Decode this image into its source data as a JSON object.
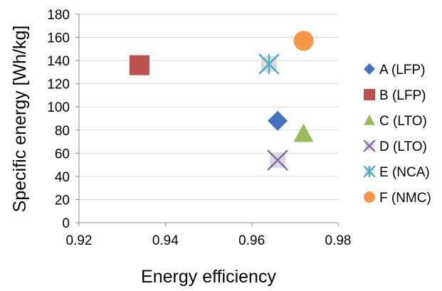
{
  "chart_data": {
    "type": "scatter",
    "xlabel": "Energy efficiency",
    "ylabel": "Specific energy [Wh/kg]",
    "xlim": [
      0.92,
      0.98
    ],
    "ylim": [
      0,
      180
    ],
    "x_ticks": [
      "0.92",
      "0.94",
      "0.96",
      "0.98"
    ],
    "y_ticks": [
      "0",
      "20",
      "40",
      "60",
      "80",
      "100",
      "120",
      "140",
      "160",
      "180"
    ],
    "grid": "horizontal",
    "legend_position": "right",
    "series": [
      {
        "name": "A (LFP)",
        "marker": "diamond",
        "color": "#4472C4",
        "points": [
          {
            "x": 0.966,
            "y": 88
          }
        ]
      },
      {
        "name": "B (LFP)",
        "marker": "square",
        "color": "#C0504D",
        "points": [
          {
            "x": 0.934,
            "y": 136
          }
        ]
      },
      {
        "name": "C (LTO)",
        "marker": "triangle",
        "color": "#9BBB59",
        "points": [
          {
            "x": 0.972,
            "y": 77
          }
        ]
      },
      {
        "name": "D (LTO)",
        "marker": "x",
        "color": "#8064A2",
        "points": [
          {
            "x": 0.966,
            "y": 54
          }
        ]
      },
      {
        "name": "E (NCA)",
        "marker": "star",
        "color": "#4BACC6",
        "points": [
          {
            "x": 0.964,
            "y": 137
          }
        ]
      },
      {
        "name": "F (NMC)",
        "marker": "circle",
        "color": "#F79646",
        "points": [
          {
            "x": 0.972,
            "y": 157
          }
        ]
      }
    ]
  }
}
